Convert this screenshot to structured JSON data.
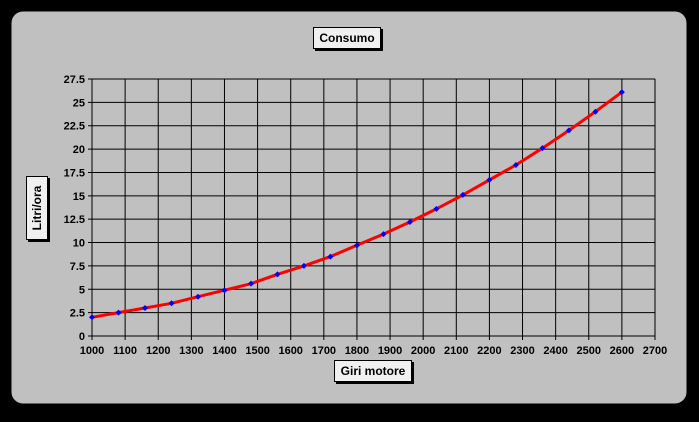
{
  "chart_data": {
    "type": "line",
    "title": "Consumo",
    "xlabel": "Giri motore",
    "ylabel": "Litri/ora",
    "xlim": [
      1000,
      2700
    ],
    "ylim": [
      0,
      27.5
    ],
    "x_ticks": [
      1000,
      1100,
      1200,
      1300,
      1400,
      1500,
      1600,
      1700,
      1800,
      1900,
      2000,
      2100,
      2200,
      2300,
      2400,
      2500,
      2600,
      2700
    ],
    "y_ticks": [
      "0",
      "2.5",
      "5",
      "7.5",
      "10",
      "12.5",
      "15",
      "17.5",
      "20",
      "22.5",
      "25",
      "27.5"
    ],
    "grid": true,
    "legend": false,
    "series": [
      {
        "x": [
          1000,
          1080,
          1160,
          1240,
          1320,
          1400,
          1480,
          1560,
          1640,
          1720,
          1800,
          1880,
          1960,
          2040,
          2120,
          2200,
          2280,
          2360,
          2440,
          2520,
          2600
        ],
        "y": [
          2.0,
          2.5,
          3.0,
          3.5,
          4.2,
          4.9,
          5.6,
          6.6,
          7.5,
          8.5,
          9.7,
          10.9,
          12.2,
          13.6,
          15.1,
          16.7,
          18.3,
          20.1,
          22.0,
          24.0,
          26.1
        ]
      }
    ],
    "colors": {
      "frame": "#c0c0c0",
      "plot_area": "#c0c0c0",
      "line": "#ff0000",
      "markers": "#0000ff",
      "gridlines": "#000000"
    }
  }
}
